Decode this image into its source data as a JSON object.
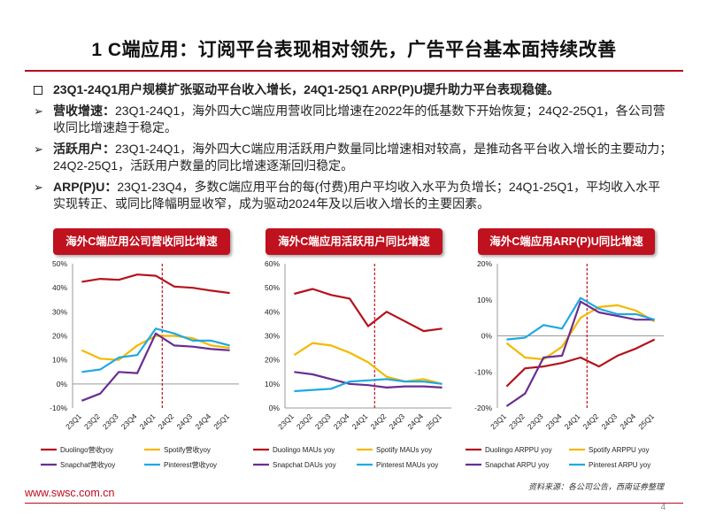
{
  "page": {
    "title": "1 C端应用：订阅平台表现相对领先，广告平台基本面持续改善",
    "footer_url": "www.swsc.com.cn",
    "source": "资料来源：各公司公告，西南证券整理",
    "page_number": "4",
    "accent_color": "#c0111f"
  },
  "bullets": [
    {
      "marker": "square",
      "head": "",
      "text": "23Q1-24Q1用户规模扩张驱动平台收入增长，24Q1-25Q1 ARP(P)U提升助力平台表现稳健。",
      "bold": true
    },
    {
      "marker": "arrow",
      "head": "营收增速：",
      "text": "23Q1-24Q1，海外四大C端应用营收同比增速在2022年的低基数下开始恢复；24Q2-25Q1，各公司营收同比增速趋于稳定。"
    },
    {
      "marker": "arrow",
      "head": "活跃用户：",
      "text": "23Q1-24Q1，海外四大C端应用活跃用户数量同比增速相对较高，是推动各平台收入增长的主要动力；24Q2-25Q1，活跃用户数量的同比增速逐渐回归稳定。"
    },
    {
      "marker": "arrow",
      "head": "ARP(P)U：",
      "text": "23Q1-23Q4，多数C端应用平台的每(付费)用户平均收入水平为负增长；24Q1-25Q1，平均收入水平实现转正、或同比降幅明显收窄，成为驱动2024年及以后收入增长的主要因素。"
    }
  ],
  "chart_data": [
    {
      "type": "line",
      "title": "海外C端应用公司营收同比增速",
      "categories": [
        "23Q1",
        "23Q2",
        "23Q3",
        "23Q4",
        "24Q1",
        "24Q2",
        "24Q3",
        "24Q4",
        "25Q1"
      ],
      "ylim": [
        -10,
        50
      ],
      "yticks": [
        -10,
        0,
        10,
        20,
        30,
        40,
        50
      ],
      "unit": "%",
      "divider_after": "24Q1",
      "series": [
        {
          "name": "Duolingo营收yoy",
          "color": "#b5121b",
          "values": [
            42.5,
            43.7,
            43.3,
            45.5,
            45.0,
            40.5,
            40.0,
            38.8,
            37.8
          ]
        },
        {
          "name": "Spotify营收yoy",
          "color": "#f5b800",
          "values": [
            14.0,
            10.5,
            10.0,
            16.0,
            20.0,
            20.0,
            19.0,
            16.0,
            15.0
          ]
        },
        {
          "name": "Snapchat营收yoy",
          "color": "#6a2d91",
          "values": [
            -7.0,
            -4.0,
            5.0,
            4.5,
            21.0,
            16.0,
            15.5,
            14.5,
            14.0
          ]
        },
        {
          "name": "Pinterest营收yoy",
          "color": "#1fa9e1",
          "values": [
            5.0,
            6.0,
            11.0,
            12.0,
            23.0,
            21.0,
            18.0,
            18.0,
            16.0
          ]
        }
      ]
    },
    {
      "type": "line",
      "title": "海外C端应用活跃用户同比增速",
      "categories": [
        "23Q1",
        "23Q2",
        "23Q3",
        "23Q4",
        "24Q1",
        "24Q2",
        "24Q3",
        "24Q4",
        "25Q1"
      ],
      "ylim": [
        0,
        60
      ],
      "yticks": [
        0,
        10,
        20,
        30,
        40,
        50,
        60
      ],
      "unit": "%",
      "divider_after": "24Q1",
      "series": [
        {
          "name": "Duolingo MAUs yoy",
          "color": "#b5121b",
          "values": [
            47.5,
            49.5,
            47.0,
            45.5,
            34.0,
            40.0,
            36.0,
            32.0,
            33.0
          ]
        },
        {
          "name": "Spotify MAUs yoy",
          "color": "#f5b800",
          "values": [
            22.0,
            27.0,
            26.0,
            23.0,
            19.0,
            13.0,
            11.0,
            12.0,
            10.0
          ]
        },
        {
          "name": "Snapchat DAUs yoy",
          "color": "#6a2d91",
          "values": [
            15.0,
            14.0,
            12.0,
            10.0,
            9.5,
            8.5,
            9.0,
            9.0,
            8.5
          ]
        },
        {
          "name": "Pinterest MAUs yoy",
          "color": "#1fa9e1",
          "values": [
            7.0,
            7.5,
            8.0,
            11.0,
            11.5,
            12.0,
            11.0,
            11.0,
            10.0
          ]
        }
      ]
    },
    {
      "type": "line",
      "title": "海外C端应用ARP(P)U同比增速",
      "categories": [
        "23Q1",
        "23Q2",
        "23Q3",
        "23Q4",
        "24Q1",
        "24Q2",
        "24Q3",
        "24Q4",
        "25Q1"
      ],
      "ylim": [
        -20,
        20
      ],
      "yticks": [
        -20,
        -10,
        0,
        10,
        20
      ],
      "unit": "%",
      "divider_after": "24Q1",
      "series": [
        {
          "name": "Duolingo ARPPU yoy",
          "color": "#b5121b",
          "values": [
            -14.0,
            -9.0,
            -8.5,
            -7.5,
            -6.0,
            -8.5,
            -5.5,
            -3.5,
            -1.0
          ]
        },
        {
          "name": "Spotify ARPPU yoy",
          "color": "#f5b800",
          "values": [
            -2.0,
            -6.0,
            -6.5,
            -3.0,
            5.0,
            8.0,
            8.5,
            7.0,
            4.0
          ]
        },
        {
          "name": "Snapchat ARPU yoy",
          "color": "#6a2d91",
          "values": [
            -19.5,
            -16.0,
            -6.0,
            -5.5,
            9.5,
            6.5,
            5.5,
            4.5,
            4.5
          ]
        },
        {
          "name": "Pinterest ARPU yoy",
          "color": "#1fa9e1",
          "values": [
            -1.0,
            -0.5,
            3.0,
            2.0,
            10.5,
            7.5,
            6.0,
            6.0,
            4.5
          ]
        }
      ]
    }
  ]
}
